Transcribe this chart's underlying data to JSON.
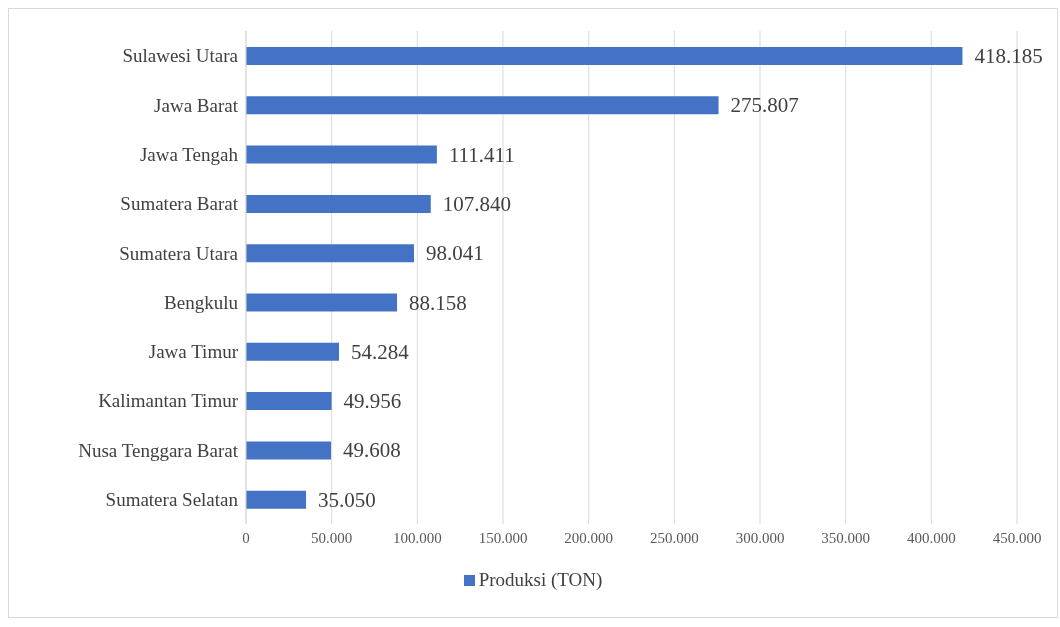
{
  "chart_data": {
    "type": "bar",
    "orientation": "horizontal",
    "categories": [
      "Sulawesi Utara",
      "Jawa Barat",
      "Jawa Tengah",
      "Sumatera Barat",
      "Sumatera Utara",
      "Bengkulu",
      "Jawa Timur",
      "Kalimantan Timur",
      "Nusa Tenggara Barat",
      "Sumatera Selatan"
    ],
    "series": [
      {
        "name": "Produksi (TON)",
        "color": "#4472c4",
        "values": [
          418185,
          275807,
          111411,
          107840,
          98041,
          88158,
          54284,
          49956,
          49608,
          35050
        ],
        "value_labels": [
          "418.185",
          "275.807",
          "111.411",
          "107.840",
          "98.041",
          "88.158",
          "54.284",
          "49.956",
          "49.608",
          "35.050"
        ]
      }
    ],
    "xlim": [
      0,
      450000
    ],
    "xticks": [
      0,
      {
        "value": 50000,
        "label": "50.000"
      },
      {
        "value": 100000,
        "label": "100.000"
      },
      {
        "value": 150000,
        "label": "150.000"
      },
      {
        "value": 200000,
        "label": "200.000"
      },
      {
        "value": 250000,
        "label": "250.000"
      },
      {
        "value": 300000,
        "label": "300.000"
      },
      {
        "value": 350000,
        "label": "350.000"
      },
      {
        "value": 400000,
        "label": "400.000"
      },
      {
        "value": 450000,
        "label": "450.000"
      }
    ],
    "grid": "x",
    "legend": "bottom"
  }
}
